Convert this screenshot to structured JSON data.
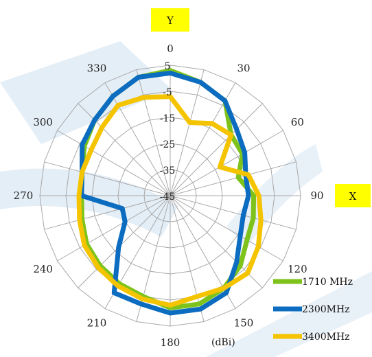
{
  "chart_data": {
    "type": "polar-line",
    "unit_label": "(dBi)",
    "radial_ticks": [
      5,
      -5,
      -15,
      -25,
      -35,
      -45
    ],
    "r_range": [
      -45,
      5
    ],
    "angle_ticks": [
      0,
      30,
      60,
      90,
      120,
      150,
      180,
      210,
      240,
      270,
      300,
      330
    ],
    "angle_step_deg": 15,
    "axis_markers": {
      "top": "Y",
      "right": "X",
      "color": "#ffff00"
    },
    "angles": [
      0,
      15,
      30,
      45,
      60,
      75,
      90,
      105,
      120,
      135,
      150,
      165,
      180,
      195,
      210,
      225,
      240,
      255,
      270,
      285,
      300,
      315,
      330,
      345
    ],
    "series": [
      {
        "name": "1710 MHz",
        "color": "#7dc31b",
        "values": [
          3,
          0,
          -3,
          -12,
          -13,
          -18,
          -13,
          -12,
          -11,
          -7,
          -4,
          -2,
          -2,
          -5,
          -6,
          -7,
          -8,
          -10,
          -11,
          -10,
          -7,
          -4,
          -1,
          2
        ]
      },
      {
        "name": "2300MHz",
        "color": "#0b6cc0",
        "values": [
          2,
          0,
          -3,
          -9,
          -12,
          -15,
          -15,
          -16,
          -14,
          -9,
          -2,
          0,
          0,
          -2,
          -2,
          -17,
          -25,
          -26,
          -11,
          -10,
          -6,
          -4,
          -1,
          2
        ]
      },
      {
        "name": "3400MHz",
        "color": "#f5c400",
        "values": [
          -7,
          -16,
          -13,
          -12,
          -23,
          -14,
          -11,
          -9,
          -6,
          -3,
          -4,
          -5,
          -3,
          -4,
          -5,
          -6,
          -7,
          -9,
          -10,
          -10,
          -10,
          -8,
          -5,
          -6
        ]
      }
    ]
  }
}
